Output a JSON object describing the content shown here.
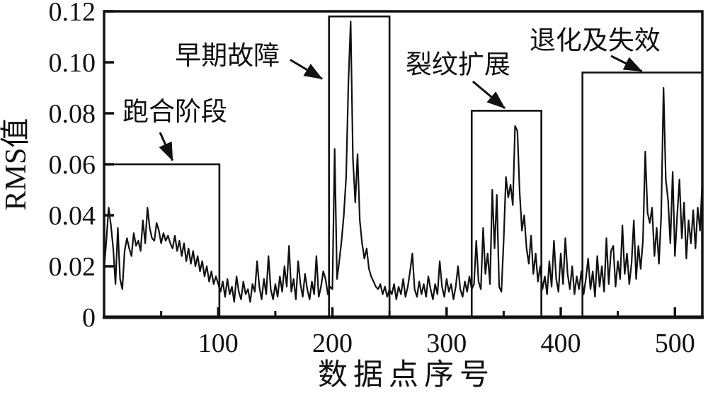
{
  "figure": {
    "background_color": "#ffffff",
    "ink_color": "#111111"
  },
  "chart_data": {
    "type": "line",
    "title": "",
    "xlabel": "数据点序号",
    "ylabel": "RMS值",
    "xlim": [
      0,
      524
    ],
    "ylim": [
      0,
      0.12
    ],
    "grid": false,
    "legend": false,
    "line_color": "#111111",
    "x_start": 0,
    "x_step": 2,
    "values": [
      0.019,
      0.03,
      0.043,
      0.036,
      0.027,
      0.013,
      0.035,
      0.015,
      0.011,
      0.026,
      0.031,
      0.027,
      0.024,
      0.033,
      0.028,
      0.03,
      0.026,
      0.038,
      0.029,
      0.043,
      0.035,
      0.031,
      0.03,
      0.037,
      0.034,
      0.029,
      0.033,
      0.03,
      0.032,
      0.029,
      0.027,
      0.032,
      0.026,
      0.03,
      0.024,
      0.029,
      0.022,
      0.027,
      0.021,
      0.026,
      0.02,
      0.024,
      0.018,
      0.022,
      0.016,
      0.02,
      0.014,
      0.018,
      0.013,
      0.016,
      0.013,
      0.01,
      0.014,
      0.008,
      0.015,
      0.009,
      0.012,
      0.006,
      0.016,
      0.01,
      0.007,
      0.014,
      0.009,
      0.011,
      0.006,
      0.013,
      0.01,
      0.022,
      0.012,
      0.007,
      0.015,
      0.009,
      0.024,
      0.011,
      0.007,
      0.013,
      0.008,
      0.016,
      0.01,
      0.02,
      0.012,
      0.028,
      0.01,
      0.015,
      0.007,
      0.022,
      0.013,
      0.008,
      0.017,
      0.011,
      0.007,
      0.014,
      0.009,
      0.024,
      0.008,
      0.012,
      0.018,
      0.015,
      0.009,
      0.012,
      0.011,
      0.066,
      0.015,
      0.022,
      0.03,
      0.04,
      0.055,
      0.092,
      0.116,
      0.062,
      0.045,
      0.064,
      0.038,
      0.029,
      0.023,
      0.027,
      0.019,
      0.016,
      0.014,
      0.012,
      0.011,
      0.013,
      0.009,
      0.012,
      0.008,
      0.011,
      0.009,
      0.013,
      0.007,
      0.012,
      0.009,
      0.015,
      0.008,
      0.012,
      0.018,
      0.025,
      0.011,
      0.008,
      0.014,
      0.009,
      0.013,
      0.008,
      0.016,
      0.011,
      0.007,
      0.013,
      0.009,
      0.022,
      0.012,
      0.008,
      0.015,
      0.01,
      0.013,
      0.007,
      0.012,
      0.02,
      0.011,
      0.008,
      0.014,
      0.01,
      0.016,
      0.011,
      0.013,
      0.03,
      0.014,
      0.011,
      0.035,
      0.017,
      0.025,
      0.013,
      0.05,
      0.027,
      0.048,
      0.012,
      0.01,
      0.03,
      0.055,
      0.047,
      0.052,
      0.044,
      0.075,
      0.073,
      0.049,
      0.034,
      0.04,
      0.027,
      0.021,
      0.032,
      0.017,
      0.025,
      0.014,
      0.02,
      0.011,
      0.016,
      0.009,
      0.022,
      0.012,
      0.03,
      0.015,
      0.01,
      0.025,
      0.013,
      0.031,
      0.017,
      0.011,
      0.02,
      0.009,
      0.016,
      0.011,
      0.018,
      0.009,
      0.015,
      0.023,
      0.011,
      0.018,
      0.008,
      0.024,
      0.012,
      0.02,
      0.01,
      0.031,
      0.013,
      0.026,
      0.028,
      0.012,
      0.022,
      0.015,
      0.036,
      0.017,
      0.025,
      0.013,
      0.021,
      0.038,
      0.015,
      0.028,
      0.019,
      0.03,
      0.065,
      0.041,
      0.037,
      0.043,
      0.024,
      0.035,
      0.021,
      0.04,
      0.09,
      0.054,
      0.046,
      0.029,
      0.057,
      0.024,
      0.04,
      0.054,
      0.031,
      0.045,
      0.023,
      0.038,
      0.029,
      0.042,
      0.027,
      0.043,
      0.034,
      0.054
    ],
    "xticks": {
      "major": [
        100,
        200,
        300,
        400,
        500
      ],
      "major_labels": [
        "100",
        "200",
        "300",
        "400",
        "500"
      ],
      "minor": [
        50,
        150,
        250,
        350,
        450
      ]
    },
    "yticks": {
      "values": [
        0,
        0.02,
        0.04,
        0.06,
        0.08,
        0.1,
        0.12
      ],
      "labels": [
        "0",
        "0.02",
        "0.04",
        "0.06",
        "0.08",
        "0.10",
        "0.12"
      ]
    },
    "stages": [
      {
        "label": "跑合阶段",
        "rect": {
          "x0": 0,
          "x1": 101,
          "y_top": 0.06
        },
        "label_pos": {
          "x": 62,
          "y": 0.0805
        },
        "arrow": {
          "x1": 49,
          "y1": 0.0725,
          "x2": 60,
          "y2": 0.0615
        }
      },
      {
        "label": "早期故障",
        "rect": {
          "x0": 197,
          "x1": 250,
          "y_top": 0.118
        },
        "label_pos": {
          "x": 108,
          "y": 0.1025
        },
        "arrow": {
          "x1": 163,
          "y1": 0.101,
          "x2": 191,
          "y2": 0.0935
        }
      },
      {
        "label": "裂纹扩展",
        "rect": {
          "x0": 322,
          "x1": 383,
          "y_top": 0.081
        },
        "label_pos": {
          "x": 310,
          "y": 0.099
        },
        "arrow": {
          "x1": 323,
          "y1": 0.0925,
          "x2": 351,
          "y2": 0.082
        }
      },
      {
        "label": "退化及失效",
        "rect": {
          "x0": 419,
          "x1": 524,
          "y_top": 0.096
        },
        "label_pos": {
          "x": 430,
          "y": 0.1085
        },
        "arrow": {
          "x1": 444,
          "y1": 0.1025,
          "x2": 471,
          "y2": 0.0965
        }
      }
    ]
  }
}
